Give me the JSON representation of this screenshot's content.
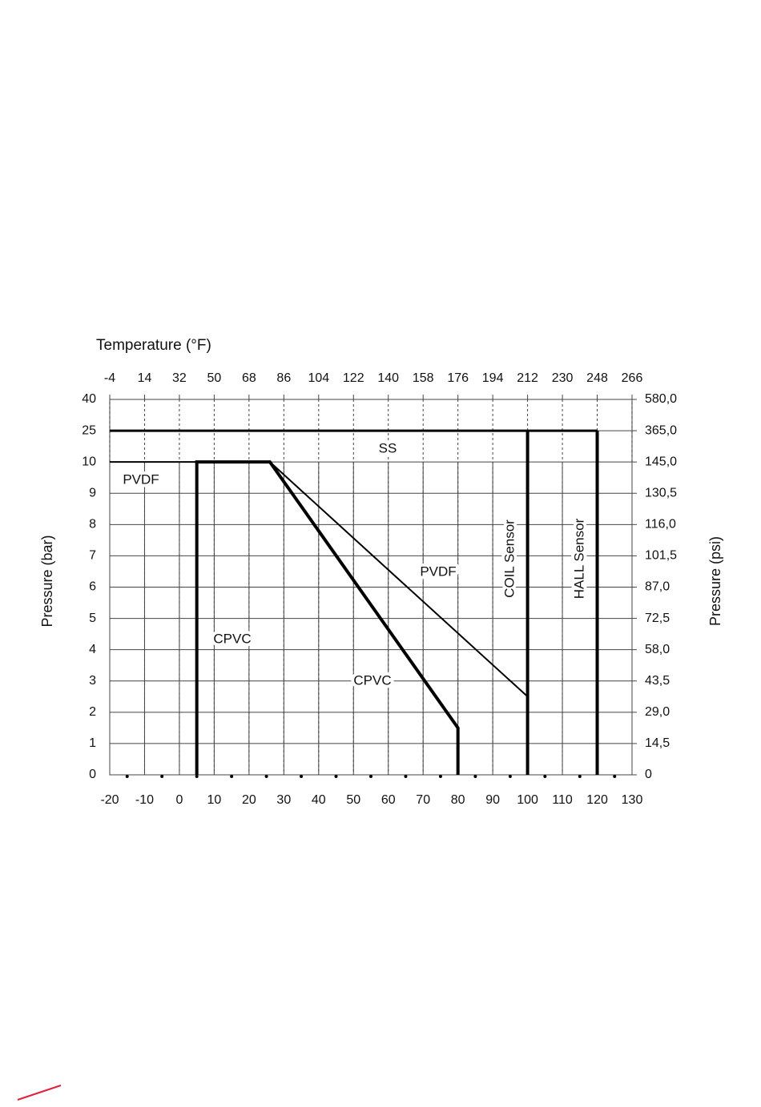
{
  "chart_data": {
    "type": "line",
    "title": "Temperature (°F)",
    "y_label": "Pressure (bar)",
    "y2_label": "Pressure (psi)",
    "xlim": [
      -20,
      130
    ],
    "xticks": [
      -20,
      -10,
      0,
      10,
      20,
      30,
      40,
      50,
      60,
      70,
      80,
      90,
      100,
      110,
      120,
      130
    ],
    "x2lim": [
      -4,
      266
    ],
    "x2ticks": [
      -4,
      14,
      32,
      50,
      68,
      86,
      104,
      122,
      140,
      158,
      176,
      194,
      212,
      230,
      248,
      266
    ],
    "ylim": [
      0,
      40
    ],
    "yticks": [
      0,
      1,
      2,
      3,
      4,
      5,
      6,
      7,
      8,
      9,
      10,
      25,
      40
    ],
    "y2lim": [
      0,
      580
    ],
    "y2ticks": [
      0,
      {
        "value": 14.5,
        "label": "14,5"
      },
      {
        "value": 29,
        "label": "29,0"
      },
      {
        "value": 43.5,
        "label": "43,5"
      },
      {
        "value": 58,
        "label": "58,0"
      },
      {
        "value": 72.5,
        "label": "72,5"
      },
      {
        "value": 87,
        "label": "87,0"
      },
      {
        "value": 101.5,
        "label": "101,5"
      },
      {
        "value": 116,
        "label": "116,0"
      },
      {
        "value": 130.5,
        "label": "130,5"
      },
      {
        "value": 145,
        "label": "145,0"
      },
      {
        "value": 365,
        "label": "365,0"
      },
      {
        "value": 580,
        "label": "580,0"
      }
    ],
    "grid": true,
    "series": [
      {
        "name": "SS",
        "color": "#000000",
        "width": 3,
        "x": [
          -20,
          120
        ],
        "values": [
          25,
          25
        ]
      },
      {
        "name": "PVDF",
        "color": "#000000",
        "width": 2,
        "x": [
          -20,
          26,
          100
        ],
        "values": [
          10,
          10,
          2.5
        ]
      },
      {
        "name": "CPVC",
        "color": "#000000",
        "width": 4,
        "x": [
          5,
          5,
          26,
          80,
          80
        ],
        "values": [
          0,
          10,
          10,
          1.5,
          0
        ]
      },
      {
        "name": "COIL Sensor",
        "color": "#000000",
        "width": 4,
        "x": [
          100,
          100
        ],
        "values": [
          0,
          25
        ]
      },
      {
        "name": "HALL Sensor",
        "color": "#000000",
        "width": 4,
        "x": [
          120,
          120
        ],
        "values": [
          0,
          25
        ]
      }
    ],
    "annotations": [
      "PVDF",
      "CPVC"
    ]
  }
}
